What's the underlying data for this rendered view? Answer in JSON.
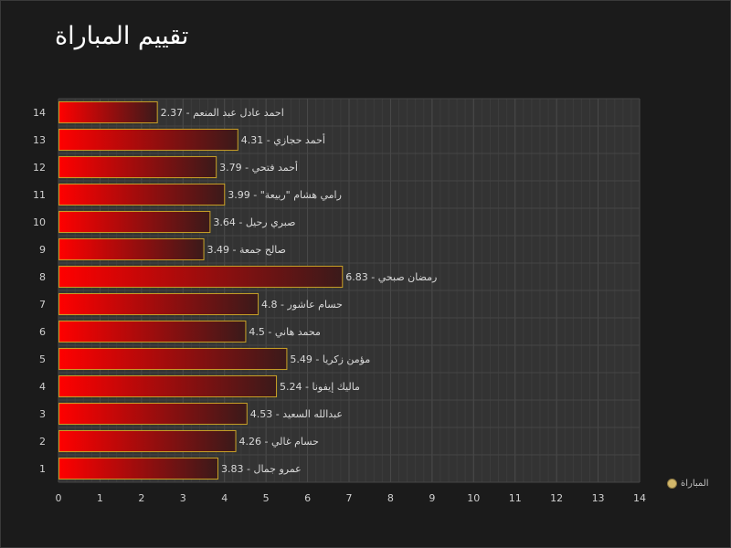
{
  "title": "تقييم المباراة",
  "chart_data": {
    "type": "bar",
    "orientation": "horizontal",
    "title": "تقييم المباراة",
    "categories": [
      "1",
      "2",
      "3",
      "4",
      "5",
      "6",
      "7",
      "8",
      "9",
      "10",
      "11",
      "12",
      "13",
      "14"
    ],
    "series": [
      {
        "name": "المباراة",
        "values": [
          3.83,
          4.26,
          4.53,
          5.24,
          5.49,
          4.5,
          4.8,
          6.83,
          3.49,
          3.64,
          3.99,
          3.79,
          4.31,
          2.37
        ],
        "labels": [
          "عمرو جمال - 3.83",
          "حسام غالي - 4.26",
          "عبدالله السعيد - 4.53",
          "ماليك إيفونا - 5.24",
          "مؤمن زكريا - 5.49",
          "محمد هاني - 4.5",
          "حسام عاشور - 4.8",
          "رمضان صبحي - 6.83",
          "صالح جمعة - 3.49",
          "صبري رحيل - 3.64",
          "رامي هشام \"ربيعة\" - 3.99",
          "أحمد فتحي - 3.79",
          "أحمد حجازي - 4.31",
          "احمد عادل عبد المنعم - 2.37"
        ]
      }
    ],
    "x_ticks": [
      "0",
      "1",
      "2",
      "3",
      "4",
      "5",
      "6",
      "7",
      "8",
      "9",
      "10",
      "11",
      "12",
      "13",
      "14"
    ],
    "xlim": [
      0,
      14
    ],
    "grid": true,
    "legend": "bottom-right",
    "colors": {
      "bar_start": "#ff0000",
      "bar_end": "#3a1a1a",
      "bar_border": "#c9a227",
      "plot_bg": "#333333",
      "grid": "#454545",
      "legend_marker": "#d2b76a"
    }
  },
  "legend": {
    "label": "المباراة"
  }
}
